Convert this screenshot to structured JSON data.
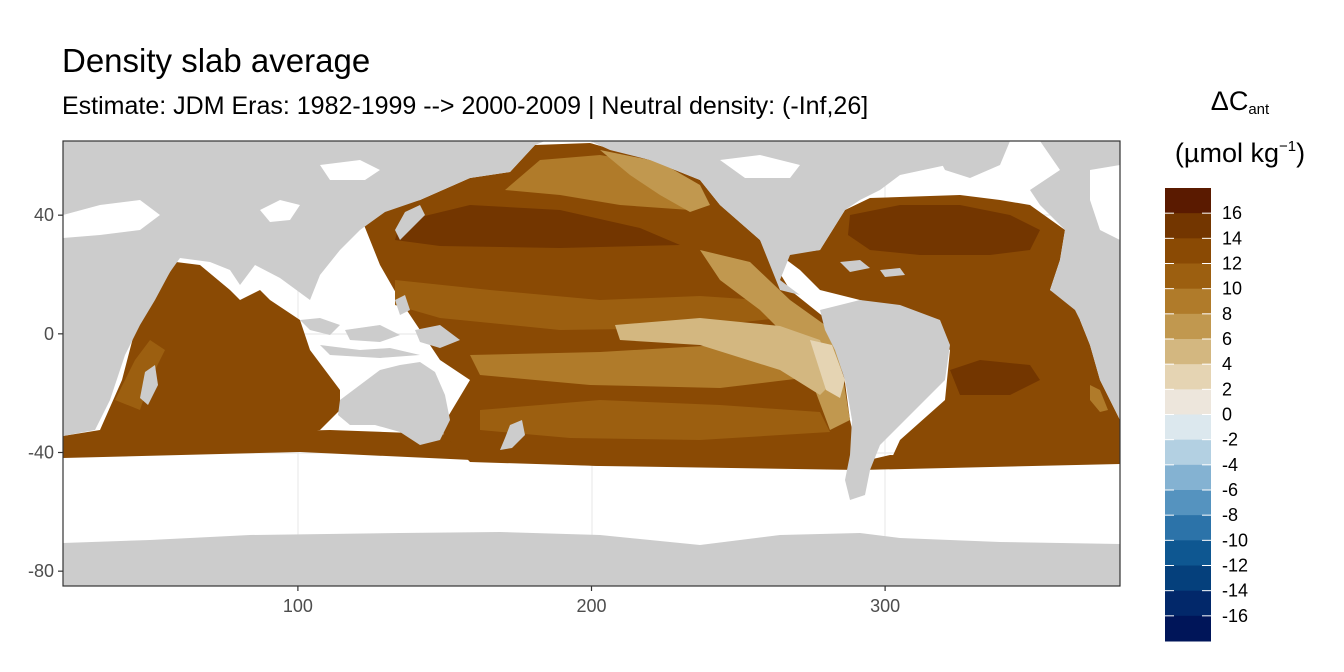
{
  "title": "Density slab average",
  "subtitle": "Estimate: JDM Eras: 1982-1999 --> 2000-2009 | Neutral density: (-Inf,26]",
  "map_data": {
    "x_range": [
      20,
      380
    ],
    "y_range": [
      -85,
      65
    ],
    "x_ticks": [
      100,
      200,
      300
    ],
    "y_ticks": [
      40,
      0,
      -40,
      -80
    ],
    "land_color": "#cccccc",
    "no_data_color": "#ffffff",
    "panel_background": "#ffffff",
    "grid_color": "#ebebeb"
  },
  "legend": {
    "title_main": "ΔC",
    "title_sub": "ant",
    "unit_main": "(µmol kg",
    "unit_sup": "−1",
    "unit_close": ")",
    "labels": [
      "16",
      "14",
      "12",
      "10",
      "8",
      "6",
      "4",
      "2",
      "0",
      "-2",
      "-4",
      "-6",
      "-8",
      "-10",
      "-12",
      "-14",
      "-16"
    ],
    "colors": [
      "#5a1a00",
      "#733600",
      "#8a4a04",
      "#9c5f10",
      "#b07b2a",
      "#c1984f",
      "#d3b780",
      "#e5d4b3",
      "#ede6dc",
      "#dce8ee",
      "#b3d0e2",
      "#84b2d2",
      "#5593bf",
      "#2c73a9",
      "#0e5791",
      "#05407c",
      "#02286a",
      "#001559"
    ]
  }
}
